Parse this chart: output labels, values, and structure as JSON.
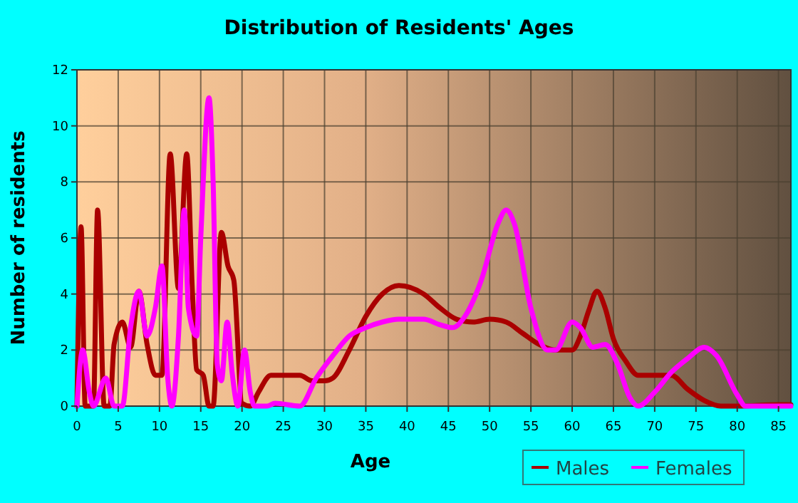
{
  "chart_data": {
    "type": "line",
    "title": "Distribution of Residents' Ages",
    "xlabel": "Age",
    "ylabel": "Number of residents",
    "xlim": [
      0,
      86.5
    ],
    "ylim": [
      0,
      12
    ],
    "xticks": [
      0,
      5,
      10,
      15,
      20,
      25,
      30,
      35,
      40,
      45,
      50,
      55,
      60,
      65,
      70,
      75,
      80,
      85
    ],
    "yticks": [
      0,
      2,
      4,
      6,
      8,
      10,
      12
    ],
    "grid": true,
    "legend": "bottom",
    "marker": "none",
    "line_style": "solid",
    "series": [
      {
        "name": "Males",
        "color": "#aa0000",
        "x": [
          0,
          0.5,
          1,
          2,
          2.5,
          3.3,
          4,
          4.5,
          5.5,
          6.5,
          7.5,
          8.5,
          9.5,
          10.3,
          11.3,
          12.3,
          13.3,
          14,
          14.5,
          15.3,
          16,
          16.5,
          17.5,
          18.3,
          19,
          20,
          21,
          22,
          23.5,
          25,
          27,
          28.5,
          30,
          31,
          33,
          35,
          37,
          39,
          42,
          44,
          46,
          48,
          50,
          52,
          54,
          56,
          58,
          60,
          61,
          62,
          63,
          64,
          65,
          66.5,
          68,
          70,
          72,
          74,
          76,
          78,
          80,
          85,
          86.5
        ],
        "values": [
          0,
          6.4,
          0,
          0,
          7,
          0,
          0,
          2.2,
          3,
          2.1,
          4.1,
          2.2,
          1.1,
          1.1,
          9,
          4.2,
          9,
          4,
          1.3,
          1.1,
          0,
          0,
          6.2,
          5,
          4.5,
          0.1,
          0,
          0.5,
          1.1,
          1.1,
          1.1,
          0.9,
          0.9,
          1,
          2,
          3.2,
          4,
          4.3,
          4,
          3.5,
          3.1,
          3,
          3.1,
          3,
          2.6,
          2.2,
          2,
          2,
          2.5,
          3.4,
          4.1,
          3.5,
          2.4,
          1.6,
          1.1,
          1.1,
          1.1,
          0.6,
          0.2,
          0,
          0,
          0.05,
          0.05
        ]
      },
      {
        "name": "Females",
        "color": "#ff00ff",
        "x": [
          0,
          0.7,
          1.5,
          2,
          3.5,
          4.5,
          5.5,
          6.5,
          7.5,
          8.5,
          9.5,
          10.3,
          11,
          11.5,
          12.3,
          13,
          13.5,
          14.5,
          15,
          16,
          16.5,
          17,
          17.5,
          18.2,
          18.8,
          19.5,
          20.3,
          21,
          21.5,
          23,
          24,
          27,
          29,
          31,
          33,
          35,
          37,
          39,
          42,
          44,
          45.5,
          47,
          49,
          51,
          52,
          53,
          55,
          57,
          58,
          60,
          61,
          62.5,
          64,
          65.5,
          67,
          68,
          70,
          72,
          74,
          76,
          77.5,
          80,
          81,
          83,
          86.5
        ],
        "values": [
          0,
          2,
          0.5,
          0,
          1,
          0,
          0,
          2.8,
          4.1,
          2.5,
          3.5,
          5,
          1,
          0,
          2.5,
          7,
          3.5,
          2.5,
          6,
          11,
          8,
          1.5,
          0.9,
          3,
          1.2,
          0,
          2,
          0.5,
          0,
          0,
          0.1,
          0,
          1,
          1.8,
          2.5,
          2.8,
          3,
          3.1,
          3.1,
          2.9,
          2.8,
          3.2,
          4.5,
          6.5,
          7,
          6.5,
          3.5,
          2,
          2,
          3,
          2.8,
          2.1,
          2.2,
          1.5,
          0.3,
          0,
          0.5,
          1.2,
          1.7,
          2.1,
          1.8,
          0.4,
          0,
          0,
          0
        ]
      }
    ]
  }
}
